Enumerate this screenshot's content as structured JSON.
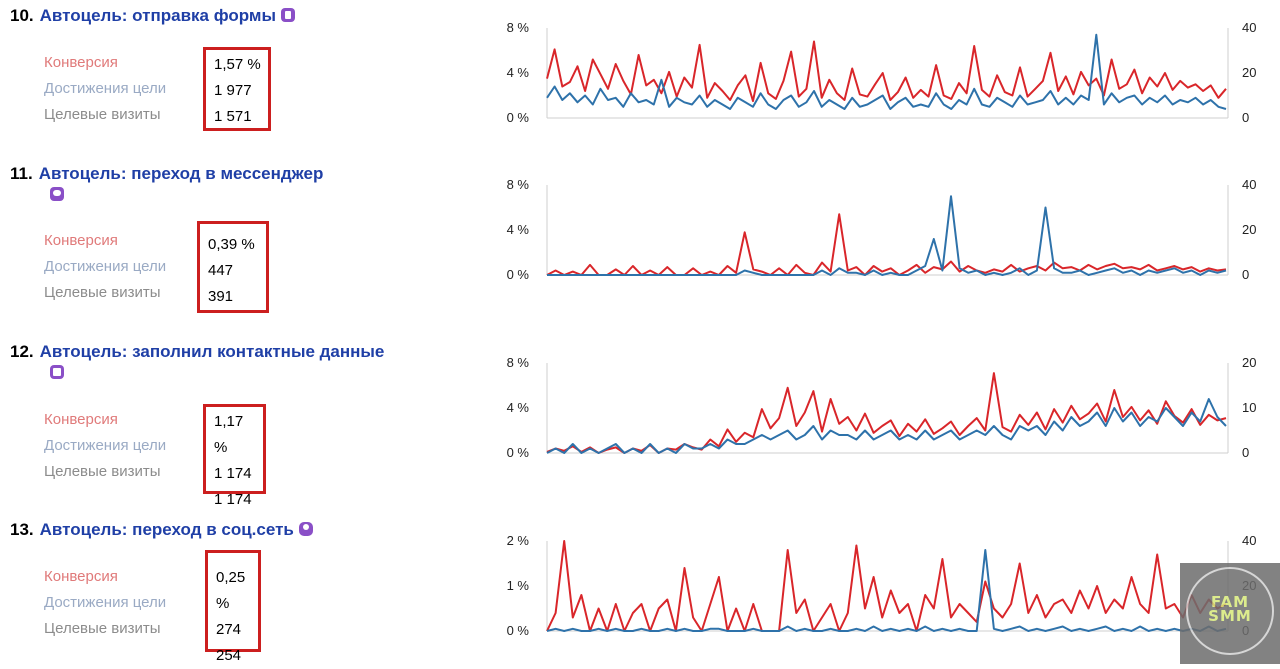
{
  "goals": [
    {
      "number": "10.",
      "name": "Автоцель: отправка формы",
      "icon": "form-icon",
      "labels": {
        "conversion": "Конверсия",
        "reaches": "Достижения цели",
        "visits": "Целевые визиты"
      },
      "values": {
        "conversion": "1,57 %",
        "reaches": "1 977",
        "visits": "1 571"
      }
    },
    {
      "number": "11.",
      "name": "Автоцель: переход в мессенджер",
      "icon": "chat-icon",
      "labels": {
        "conversion": "Конверсия",
        "reaches": "Достижения цели",
        "visits": "Целевые визиты"
      },
      "values": {
        "conversion": "0,39 %",
        "reaches": "447",
        "visits": "391"
      }
    },
    {
      "number": "12.",
      "name": "Автоцель: заполнил контактные данные",
      "icon": "contact-card-icon",
      "labels": {
        "conversion": "Конверсия",
        "reaches": "Достижения цели",
        "visits": "Целевые визиты"
      },
      "values": {
        "conversion": "1,17 %",
        "reaches": "1 174",
        "visits": "1 174"
      }
    },
    {
      "number": "13.",
      "name": "Автоцель: переход в соц.сеть",
      "icon": "person-icon",
      "labels": {
        "conversion": "Конверсия",
        "reaches": "Достижения цели",
        "visits": "Целевые визиты"
      },
      "values": {
        "conversion": "0,25 %",
        "reaches": "274",
        "visits": "254"
      }
    }
  ],
  "colors": {
    "conversion_series": "#d9262a",
    "visits_series": "#2e72aa",
    "value_box_border": "#cc1f1f",
    "title": "#1f3fa6",
    "icon": "#8a4fc7"
  },
  "watermark": {
    "line1": "FAM",
    "line2": "SMM"
  },
  "chart_data": [
    {
      "type": "line",
      "title": "Автоцель: отправка формы",
      "left_axis": {
        "ticks": [
          "8 %",
          "4 %",
          "0 %"
        ],
        "range": [
          0,
          8
        ]
      },
      "right_axis": {
        "ticks": [
          "40",
          "20",
          "0"
        ],
        "range": [
          0,
          40
        ]
      },
      "series": [
        {
          "name": "Конверсия",
          "axis": "left",
          "color": "#d9262a",
          "values": [
            3.5,
            6.1,
            2.8,
            3.2,
            4.6,
            2.4,
            5.2,
            3.9,
            2.6,
            4.8,
            3.3,
            2.1,
            5.6,
            2.9,
            3.4,
            2.2,
            4.1,
            1.9,
            3.6,
            2.7,
            6.5,
            1.8,
            3.1,
            2.4,
            1.6,
            2.9,
            3.8,
            1.5,
            4.9,
            2.2,
            1.7,
            3.3,
            5.9,
            1.9,
            2.6,
            6.8,
            1.8,
            3.4,
            2.2,
            1.6,
            4.4,
            2.1,
            1.9,
            3.0,
            4.0,
            1.6,
            2.3,
            3.6,
            1.8,
            2.5,
            1.9,
            4.7,
            2.0,
            1.7,
            3.1,
            2.2,
            6.4,
            2.5,
            1.9,
            3.8,
            2.3,
            2.0,
            4.5,
            1.9,
            2.6,
            3.3,
            5.8,
            2.4,
            3.7,
            2.1,
            4.1,
            2.9,
            3.5,
            2.0,
            5.2,
            2.6,
            3.0,
            4.3,
            2.2,
            3.6,
            2.8,
            4.0,
            2.5,
            3.3,
            2.7,
            3.0,
            2.4,
            2.9,
            1.8,
            2.6
          ]
        },
        {
          "name": "Целевые визиты",
          "axis": "right",
          "color": "#2e72aa",
          "values": [
            9,
            14,
            8,
            11,
            7,
            10,
            6,
            13,
            8,
            9,
            5,
            11,
            7,
            8,
            6,
            17,
            5,
            9,
            7,
            6,
            10,
            5,
            8,
            6,
            4,
            9,
            7,
            5,
            11,
            6,
            4,
            8,
            10,
            5,
            7,
            12,
            5,
            8,
            6,
            4,
            9,
            5,
            6,
            8,
            10,
            4,
            7,
            9,
            5,
            6,
            5,
            11,
            6,
            4,
            8,
            6,
            13,
            6,
            5,
            9,
            7,
            5,
            10,
            6,
            7,
            8,
            12,
            6,
            9,
            6,
            10,
            8,
            37,
            6,
            11,
            7,
            9,
            10,
            6,
            9,
            7,
            10,
            6,
            8,
            7,
            9,
            6,
            8,
            5,
            4
          ]
        }
      ]
    },
    {
      "type": "line",
      "title": "Автоцель: переход в мессенджер",
      "left_axis": {
        "ticks": [
          "8 %",
          "4 %",
          "0 %"
        ],
        "range": [
          0,
          8
        ]
      },
      "right_axis": {
        "ticks": [
          "40",
          "20",
          "0"
        ],
        "range": [
          0,
          40
        ]
      },
      "series": [
        {
          "name": "Конверсия",
          "axis": "left",
          "color": "#d9262a",
          "values": [
            0,
            0.4,
            0,
            0.3,
            0,
            0.9,
            0,
            0,
            0.5,
            0,
            0.8,
            0,
            0.4,
            0,
            0.7,
            0,
            0,
            0.6,
            0,
            0.3,
            0,
            0.8,
            0.2,
            3.8,
            0.5,
            0.3,
            0,
            0.6,
            0,
            0.9,
            0.2,
            0,
            1.1,
            0.3,
            5.4,
            0.4,
            0.7,
            0,
            0.8,
            0.3,
            0.6,
            0,
            0.4,
            0.9,
            0.2,
            0.7,
            0.5,
            1.2,
            0.3,
            0.8,
            0.4,
            0.2,
            0.5,
            0.3,
            0.9,
            0.3,
            0.6,
            0.8,
            0.4,
            1.1,
            0.6,
            0.7,
            0.4,
            0.9,
            0.5,
            0.8,
            1.0,
            0.6,
            0.7,
            0.5,
            0.9,
            0.4,
            0.6,
            0.8,
            0.5,
            0.7,
            0.3,
            0.6,
            0.4,
            0.5
          ]
        },
        {
          "name": "Целевые визиты",
          "axis": "right",
          "color": "#2e72aa",
          "values": [
            0,
            0,
            0,
            0,
            0,
            0,
            0,
            0,
            0,
            0,
            0,
            0,
            0,
            0,
            0,
            0,
            0,
            0,
            0,
            0,
            0,
            0,
            0,
            2,
            1,
            0,
            0,
            0,
            0,
            0,
            0,
            0,
            2,
            0,
            3,
            1,
            1,
            0,
            2,
            0,
            1,
            0,
            0,
            2,
            4,
            16,
            2,
            35,
            3,
            1,
            2,
            0,
            1,
            0,
            1,
            3,
            0,
            2,
            30,
            3,
            1,
            1,
            2,
            0,
            1,
            2,
            3,
            1,
            2,
            0,
            2,
            1,
            2,
            3,
            1,
            2,
            0,
            2,
            1,
            2
          ]
        }
      ]
    },
    {
      "type": "line",
      "title": "Автоцель: заполнил контактные данные",
      "left_axis": {
        "ticks": [
          "8 %",
          "4 %",
          "0 %"
        ],
        "range": [
          0,
          8
        ]
      },
      "right_axis": {
        "ticks": [
          "20",
          "10",
          "0"
        ],
        "range": [
          0,
          20
        ]
      },
      "series": [
        {
          "name": "Конверсия",
          "axis": "left",
          "color": "#d9262a",
          "values": [
            0.1,
            0.4,
            0.2,
            0.6,
            0.1,
            0.5,
            0,
            0.3,
            0.5,
            0,
            0.4,
            0.2,
            0.7,
            0,
            0.4,
            0.3,
            0.8,
            0.5,
            0.3,
            1.2,
            0.6,
            2.1,
            1.0,
            1.8,
            1.4,
            3.9,
            2.2,
            3.1,
            5.8,
            2.4,
            3.6,
            5.5,
            1.9,
            4.8,
            2.6,
            3.2,
            2.0,
            3.5,
            1.8,
            2.4,
            2.9,
            1.5,
            2.6,
            1.9,
            3.0,
            1.7,
            2.2,
            2.8,
            1.6,
            2.4,
            3.1,
            2.0,
            7.1,
            2.3,
            1.9,
            3.4,
            2.5,
            3.6,
            2.1,
            3.9,
            2.7,
            4.2,
            3.0,
            3.5,
            4.4,
            2.8,
            5.6,
            3.2,
            4.1,
            2.9,
            3.8,
            2.6,
            4.6,
            3.3,
            2.7,
            3.9,
            2.5,
            3.4,
            2.9,
            3.1
          ]
        },
        {
          "name": "Целевые визиты",
          "axis": "right",
          "color": "#2e72aa",
          "values": [
            0,
            1,
            0,
            2,
            0,
            1,
            0,
            1,
            2,
            0,
            1,
            0,
            2,
            0,
            1,
            0,
            2,
            1,
            1,
            2,
            1,
            3,
            2,
            2,
            3,
            4,
            3,
            4,
            5,
            3,
            4,
            6,
            3,
            5,
            4,
            4,
            3,
            5,
            3,
            4,
            5,
            3,
            4,
            3,
            5,
            3,
            4,
            5,
            3,
            4,
            5,
            4,
            6,
            4,
            3,
            6,
            5,
            6,
            4,
            7,
            5,
            8,
            6,
            7,
            9,
            6,
            10,
            7,
            9,
            6,
            8,
            7,
            10,
            8,
            6,
            9,
            7,
            12,
            8,
            6
          ]
        }
      ]
    },
    {
      "type": "line",
      "title": "Автоцель: переход в соц.сеть",
      "left_axis": {
        "ticks": [
          "2 %",
          "1 %",
          "0 %"
        ],
        "range": [
          0,
          2
        ]
      },
      "right_axis": {
        "ticks": [
          "40",
          "20",
          "0"
        ],
        "range": [
          0,
          40
        ]
      },
      "series": [
        {
          "name": "Конверсия",
          "axis": "left",
          "color": "#d9262a",
          "values": [
            0,
            0.4,
            2.0,
            0.3,
            0.8,
            0,
            0.5,
            0,
            0.6,
            0,
            0.4,
            0.6,
            0,
            0.5,
            0.7,
            0,
            1.4,
            0.3,
            0,
            0.6,
            1.2,
            0,
            0.5,
            0,
            0.6,
            0,
            0,
            0,
            1.8,
            0.4,
            0.7,
            0,
            0.3,
            0.6,
            0,
            0.4,
            1.9,
            0.5,
            1.2,
            0.3,
            0.9,
            0.4,
            0.6,
            0,
            0.8,
            0.5,
            1.6,
            0.3,
            0.6,
            0.4,
            0.2,
            1.1,
            0.5,
            0.3,
            0.6,
            1.5,
            0.4,
            0.8,
            0.3,
            0.6,
            0.7,
            0.4,
            0.9,
            0.5,
            1.0,
            0.4,
            0.7,
            0.5,
            1.2,
            0.6,
            0.4,
            1.7,
            0.5,
            0.6,
            0.3,
            0.8,
            0.4,
            0.7,
            0.5,
            0.6
          ]
        },
        {
          "name": "Целевые визиты",
          "axis": "right",
          "color": "#2e72aa",
          "values": [
            0,
            1,
            0,
            1,
            0,
            0,
            1,
            0,
            1,
            0,
            0,
            1,
            0,
            0,
            1,
            0,
            1,
            0,
            0,
            1,
            1,
            0,
            0,
            0,
            1,
            0,
            0,
            0,
            2,
            0,
            1,
            0,
            0,
            1,
            0,
            0,
            1,
            0,
            2,
            0,
            1,
            0,
            1,
            0,
            2,
            0,
            1,
            0,
            1,
            0,
            0,
            36,
            1,
            0,
            1,
            2,
            0,
            1,
            0,
            1,
            2,
            0,
            1,
            0,
            1,
            2,
            0,
            1,
            0,
            2,
            0,
            1,
            0,
            1,
            0,
            1,
            0,
            2,
            0,
            1
          ]
        }
      ]
    }
  ]
}
